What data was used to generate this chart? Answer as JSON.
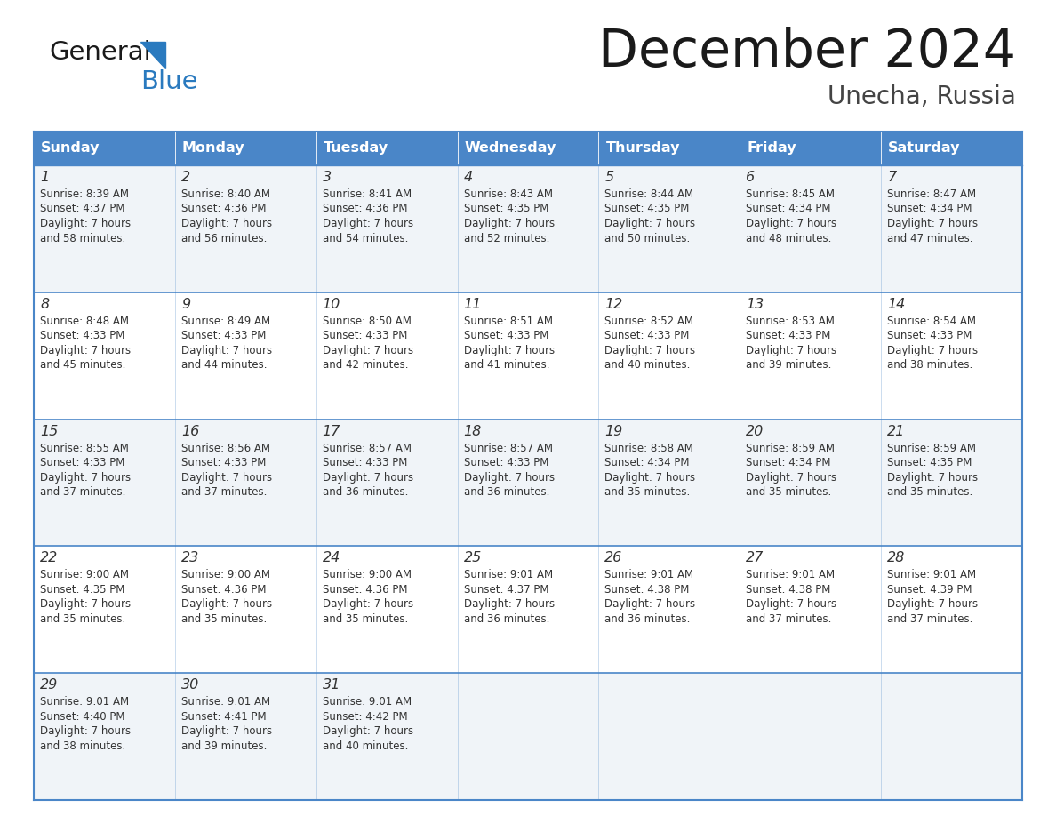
{
  "title": "December 2024",
  "subtitle": "Unecha, Russia",
  "header_color": "#4a86c8",
  "header_text_color": "#ffffff",
  "border_color": "#4a86c8",
  "day_headers": [
    "Sunday",
    "Monday",
    "Tuesday",
    "Wednesday",
    "Thursday",
    "Friday",
    "Saturday"
  ],
  "title_color": "#1a1a1a",
  "subtitle_color": "#444444",
  "day_num_color": "#333333",
  "cell_text_color": "#333333",
  "logo_general_color": "#1a1a1a",
  "logo_blue_color": "#2a7abf",
  "logo_triangle_color": "#2a7abf",
  "row_bg_even": "#f0f4f8",
  "row_bg_odd": "#ffffff",
  "calendar_data": [
    [
      {
        "day": 1,
        "sunrise": "8:39 AM",
        "sunset": "4:37 PM",
        "daylight": "7 hours and 58 minutes."
      },
      {
        "day": 2,
        "sunrise": "8:40 AM",
        "sunset": "4:36 PM",
        "daylight": "7 hours and 56 minutes."
      },
      {
        "day": 3,
        "sunrise": "8:41 AM",
        "sunset": "4:36 PM",
        "daylight": "7 hours and 54 minutes."
      },
      {
        "day": 4,
        "sunrise": "8:43 AM",
        "sunset": "4:35 PM",
        "daylight": "7 hours and 52 minutes."
      },
      {
        "day": 5,
        "sunrise": "8:44 AM",
        "sunset": "4:35 PM",
        "daylight": "7 hours and 50 minutes."
      },
      {
        "day": 6,
        "sunrise": "8:45 AM",
        "sunset": "4:34 PM",
        "daylight": "7 hours and 48 minutes."
      },
      {
        "day": 7,
        "sunrise": "8:47 AM",
        "sunset": "4:34 PM",
        "daylight": "7 hours and 47 minutes."
      }
    ],
    [
      {
        "day": 8,
        "sunrise": "8:48 AM",
        "sunset": "4:33 PM",
        "daylight": "7 hours and 45 minutes."
      },
      {
        "day": 9,
        "sunrise": "8:49 AM",
        "sunset": "4:33 PM",
        "daylight": "7 hours and 44 minutes."
      },
      {
        "day": 10,
        "sunrise": "8:50 AM",
        "sunset": "4:33 PM",
        "daylight": "7 hours and 42 minutes."
      },
      {
        "day": 11,
        "sunrise": "8:51 AM",
        "sunset": "4:33 PM",
        "daylight": "7 hours and 41 minutes."
      },
      {
        "day": 12,
        "sunrise": "8:52 AM",
        "sunset": "4:33 PM",
        "daylight": "7 hours and 40 minutes."
      },
      {
        "day": 13,
        "sunrise": "8:53 AM",
        "sunset": "4:33 PM",
        "daylight": "7 hours and 39 minutes."
      },
      {
        "day": 14,
        "sunrise": "8:54 AM",
        "sunset": "4:33 PM",
        "daylight": "7 hours and 38 minutes."
      }
    ],
    [
      {
        "day": 15,
        "sunrise": "8:55 AM",
        "sunset": "4:33 PM",
        "daylight": "7 hours and 37 minutes."
      },
      {
        "day": 16,
        "sunrise": "8:56 AM",
        "sunset": "4:33 PM",
        "daylight": "7 hours and 37 minutes."
      },
      {
        "day": 17,
        "sunrise": "8:57 AM",
        "sunset": "4:33 PM",
        "daylight": "7 hours and 36 minutes."
      },
      {
        "day": 18,
        "sunrise": "8:57 AM",
        "sunset": "4:33 PM",
        "daylight": "7 hours and 36 minutes."
      },
      {
        "day": 19,
        "sunrise": "8:58 AM",
        "sunset": "4:34 PM",
        "daylight": "7 hours and 35 minutes."
      },
      {
        "day": 20,
        "sunrise": "8:59 AM",
        "sunset": "4:34 PM",
        "daylight": "7 hours and 35 minutes."
      },
      {
        "day": 21,
        "sunrise": "8:59 AM",
        "sunset": "4:35 PM",
        "daylight": "7 hours and 35 minutes."
      }
    ],
    [
      {
        "day": 22,
        "sunrise": "9:00 AM",
        "sunset": "4:35 PM",
        "daylight": "7 hours and 35 minutes."
      },
      {
        "day": 23,
        "sunrise": "9:00 AM",
        "sunset": "4:36 PM",
        "daylight": "7 hours and 35 minutes."
      },
      {
        "day": 24,
        "sunrise": "9:00 AM",
        "sunset": "4:36 PM",
        "daylight": "7 hours and 35 minutes."
      },
      {
        "day": 25,
        "sunrise": "9:01 AM",
        "sunset": "4:37 PM",
        "daylight": "7 hours and 36 minutes."
      },
      {
        "day": 26,
        "sunrise": "9:01 AM",
        "sunset": "4:38 PM",
        "daylight": "7 hours and 36 minutes."
      },
      {
        "day": 27,
        "sunrise": "9:01 AM",
        "sunset": "4:38 PM",
        "daylight": "7 hours and 37 minutes."
      },
      {
        "day": 28,
        "sunrise": "9:01 AM",
        "sunset": "4:39 PM",
        "daylight": "7 hours and 37 minutes."
      }
    ],
    [
      {
        "day": 29,
        "sunrise": "9:01 AM",
        "sunset": "4:40 PM",
        "daylight": "7 hours and 38 minutes."
      },
      {
        "day": 30,
        "sunrise": "9:01 AM",
        "sunset": "4:41 PM",
        "daylight": "7 hours and 39 minutes."
      },
      {
        "day": 31,
        "sunrise": "9:01 AM",
        "sunset": "4:42 PM",
        "daylight": "7 hours and 40 minutes."
      },
      null,
      null,
      null,
      null
    ]
  ]
}
